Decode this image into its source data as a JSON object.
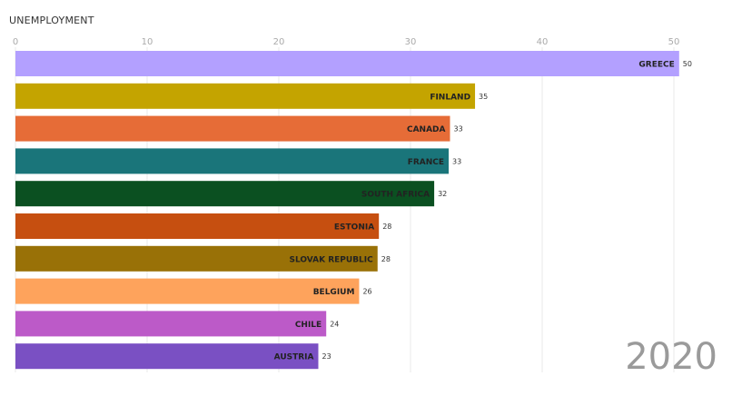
{
  "chart_data": {
    "type": "bar",
    "orientation": "horizontal",
    "title": "UNEMPLOYMENT",
    "annotation": "2020",
    "categories": [
      "GREECE",
      "FINLAND",
      "CANADA",
      "FRANCE",
      "SOUTH AFRICA",
      "ESTONIA",
      "SLOVAK REPUBLIC",
      "BELGIUM",
      "CHILE",
      "AUSTRIA"
    ],
    "values": [
      50.4,
      34.9,
      33.0,
      32.9,
      31.8,
      27.6,
      27.5,
      26.1,
      23.6,
      23.0
    ],
    "data_labels": [
      "50",
      "35",
      "33",
      "33",
      "32",
      "28",
      "28",
      "26",
      "24",
      "23"
    ],
    "colors": [
      "#b3a0ff",
      "#c4a400",
      "#e66c37",
      "#1a757a",
      "#0b5021",
      "#c64f10",
      "#997107",
      "#fea35c",
      "#bc5ac8",
      "#7a50c3"
    ],
    "xlim": [
      0,
      52
    ],
    "xticks": [
      0,
      10,
      20,
      30,
      40,
      50
    ],
    "grid": true,
    "legend": "none"
  }
}
